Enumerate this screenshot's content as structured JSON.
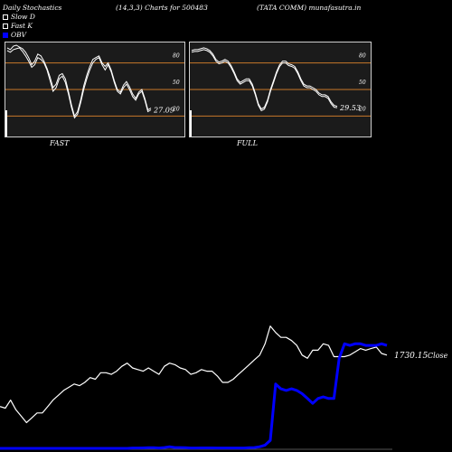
{
  "header": {
    "title": "Daily Stochastics",
    "params": "(14,3,3) Charts for 500483",
    "symbol": "(TATA COMM) munafasutra.in"
  },
  "legend": [
    {
      "label": "Slow  D",
      "color": "#ffffff",
      "style": "hollow"
    },
    {
      "label": "Fast  K",
      "color": "#ffffff",
      "style": "hollow"
    },
    {
      "label": "OBV",
      "color": "#0000ff",
      "style": "filled"
    }
  ],
  "chart_data": [
    {
      "type": "line",
      "panel": "FAST",
      "title": "FAST",
      "ylim": [
        0,
        100
      ],
      "levels": [
        20,
        50,
        80
      ],
      "level_labels": [
        "20",
        "50",
        "80"
      ],
      "grid": false,
      "last_value_label": "27.09",
      "series": [
        {
          "values": [
            94,
            92,
            95,
            96,
            97,
            93,
            88,
            82,
            75,
            78,
            86,
            84,
            80,
            72,
            60,
            48,
            52,
            62,
            65,
            58,
            45,
            30,
            18,
            22,
            35,
            50,
            62,
            72,
            80,
            84,
            86,
            78,
            72,
            78,
            70,
            58,
            48,
            45,
            52,
            56,
            50,
            42,
            38,
            45,
            48,
            38,
            25,
            27.09
          ]
        },
        {
          "values": [
            97,
            95,
            99,
            100,
            98,
            96,
            92,
            86,
            78,
            82,
            90,
            88,
            82,
            74,
            64,
            52,
            56,
            66,
            68,
            62,
            48,
            33,
            20,
            25,
            38,
            54,
            66,
            76,
            84,
            86,
            88,
            80,
            76,
            80,
            72,
            60,
            50,
            47,
            55,
            59,
            53,
            45,
            40,
            47,
            50,
            40,
            27,
            29
          ]
        }
      ]
    },
    {
      "type": "line",
      "panel": "FULL",
      "title": "FULL",
      "ylim": [
        0,
        100
      ],
      "levels": [
        20,
        50,
        80
      ],
      "level_labels": [
        "20",
        "50",
        "80"
      ],
      "grid": false,
      "last_value_label": "29.53",
      "series": [
        {
          "values": [
            92,
            93,
            93,
            94,
            95,
            94,
            92,
            88,
            82,
            79,
            80,
            82,
            80,
            75,
            68,
            60,
            56,
            58,
            60,
            60,
            54,
            44,
            32,
            26,
            28,
            36,
            48,
            58,
            68,
            76,
            80,
            80,
            77,
            76,
            74,
            68,
            60,
            54,
            52,
            52,
            50,
            48,
            44,
            42,
            42,
            40,
            34,
            30,
            29.53
          ]
        },
        {
          "values": [
            94,
            95,
            95,
            96,
            97,
            96,
            94,
            90,
            84,
            81,
            82,
            84,
            82,
            77,
            70,
            62,
            58,
            60,
            62,
            62,
            56,
            46,
            34,
            28,
            30,
            38,
            50,
            60,
            70,
            78,
            82,
            82,
            79,
            78,
            76,
            70,
            62,
            56,
            54,
            54,
            52,
            50,
            46,
            44,
            44,
            42,
            36,
            32,
            31
          ]
        }
      ]
    },
    {
      "type": "line",
      "panel": "price-obv",
      "last_value_label": "1730.15",
      "series_labels": [
        "Close"
      ],
      "ylim": [
        0,
        100
      ],
      "series": [
        {
          "name": "Close",
          "color": "#ffffff",
          "values": [
            26,
            25,
            30,
            24,
            20,
            16,
            19,
            22,
            22,
            26,
            30,
            33,
            36,
            38,
            40,
            39,
            41,
            44,
            43,
            47,
            47,
            46,
            48,
            51,
            53,
            50,
            49,
            48,
            50,
            48,
            46,
            51,
            53,
            52,
            50,
            49,
            46,
            47,
            49,
            48,
            48,
            45,
            41,
            41,
            43,
            46,
            49,
            52,
            55,
            58,
            65,
            76,
            72,
            69,
            69,
            67,
            64,
            58,
            56,
            61,
            61,
            65,
            64,
            57,
            57,
            57,
            58,
            60,
            62,
            61,
            62,
            63,
            59,
            58
          ]
        },
        {
          "name": "OBV",
          "color": "#0000ff",
          "values": [
            0,
            0,
            0,
            0,
            0,
            0,
            0,
            0,
            0,
            0,
            0,
            0,
            0,
            0,
            0,
            0,
            0,
            0,
            0,
            0,
            0,
            0,
            0,
            0,
            0,
            0.2,
            0.2,
            0.3,
            0.4,
            0.4,
            0.2,
            0.5,
            1.0,
            0.5,
            0.5,
            0.4,
            0.2,
            0.2,
            0.3,
            0.3,
            0.3,
            0.2,
            0.2,
            0.2,
            0.2,
            0.2,
            0.2,
            0.4,
            0.5,
            1.0,
            2.0,
            5.0,
            40,
            37,
            36,
            37,
            36,
            34,
            31,
            28,
            31,
            32,
            31,
            31,
            56,
            65,
            64,
            65,
            65,
            64,
            64,
            64,
            65,
            64
          ]
        }
      ]
    }
  ]
}
